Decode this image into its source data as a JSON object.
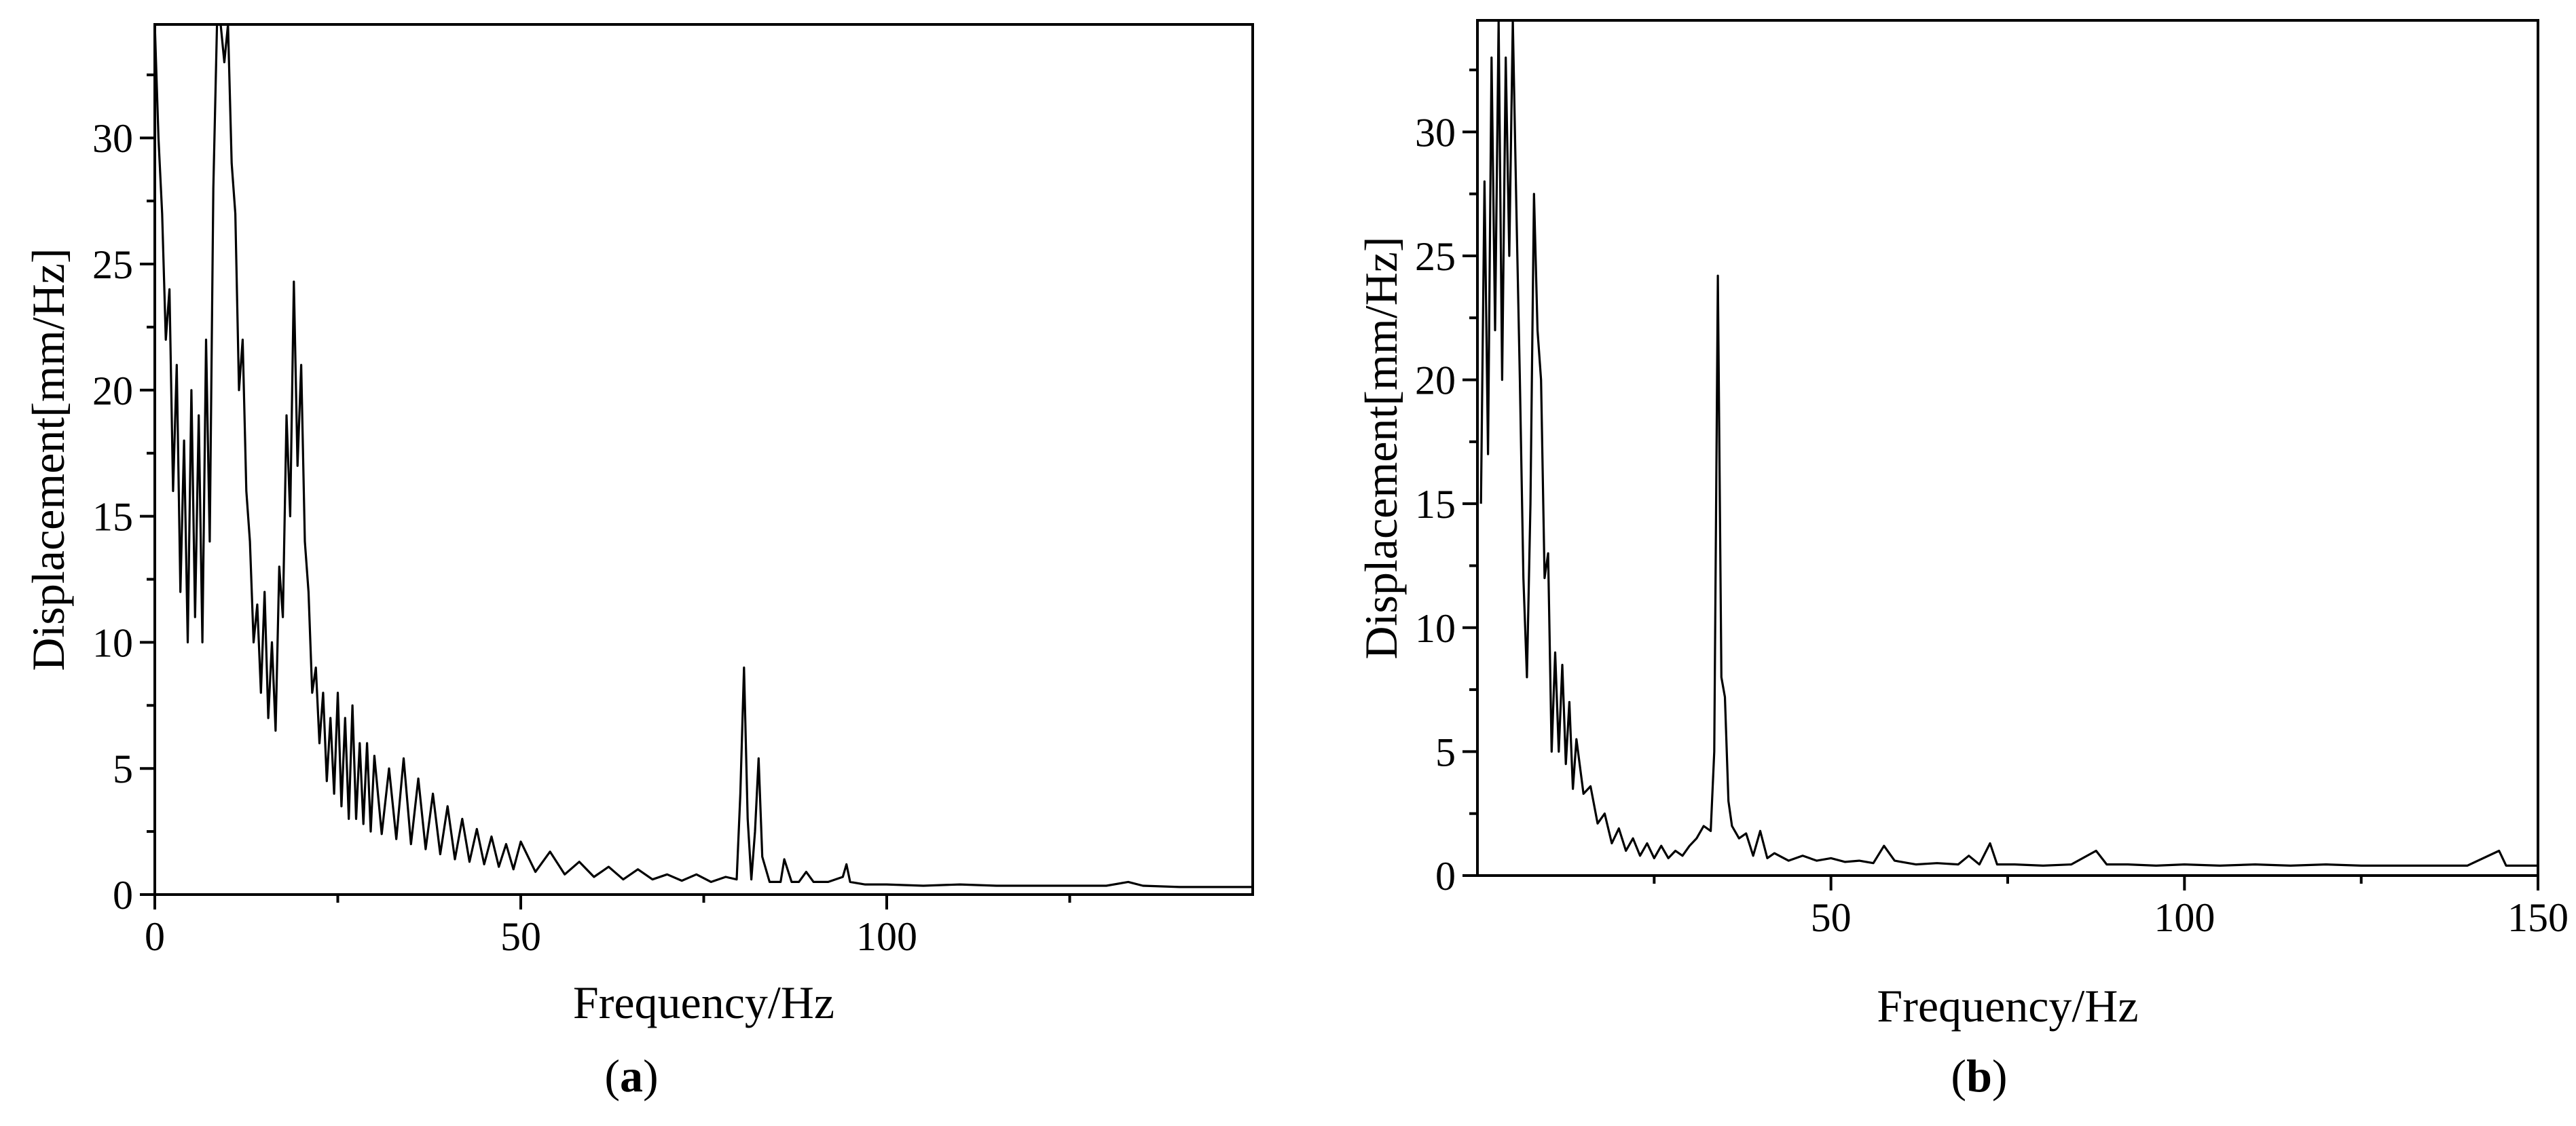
{
  "chart_data": [
    {
      "type": "line",
      "panel_label": "a",
      "xlabel": "Frequency/Hz",
      "ylabel": "Displacement[mm/Hz]",
      "xlim": [
        0,
        150
      ],
      "ylim": [
        0,
        34.5
      ],
      "x_ticks": [
        0,
        50,
        100
      ],
      "y_ticks": [
        0,
        5,
        10,
        15,
        20,
        25,
        30
      ],
      "grid": false,
      "series": [
        {
          "values": [
            [
              0,
              34.5
            ],
            [
              0.5,
              30
            ],
            [
              1,
              27
            ],
            [
              1.5,
              22
            ],
            [
              2,
              24
            ],
            [
              2.5,
              16
            ],
            [
              3,
              21
            ],
            [
              3.5,
              12
            ],
            [
              4,
              18
            ],
            [
              4.5,
              10
            ],
            [
              5,
              20
            ],
            [
              5.5,
              11
            ],
            [
              6,
              19
            ],
            [
              6.5,
              10
            ],
            [
              7,
              22
            ],
            [
              7.5,
              14
            ],
            [
              8,
              28
            ],
            [
              8.5,
              34.5
            ],
            [
              9,
              34.5
            ],
            [
              9.5,
              33
            ],
            [
              10,
              34.5
            ],
            [
              10.5,
              29
            ],
            [
              11,
              27
            ],
            [
              11.5,
              20
            ],
            [
              12,
              22
            ],
            [
              12.5,
              16
            ],
            [
              13,
              14
            ],
            [
              13.5,
              10
            ],
            [
              14,
              11.5
            ],
            [
              14.5,
              8
            ],
            [
              15,
              12
            ],
            [
              15.5,
              7
            ],
            [
              16,
              10
            ],
            [
              16.5,
              6.5
            ],
            [
              17,
              13
            ],
            [
              17.5,
              11
            ],
            [
              18,
              19
            ],
            [
              18.5,
              15
            ],
            [
              19,
              24.3
            ],
            [
              19.5,
              17
            ],
            [
              20,
              21
            ],
            [
              20.5,
              14
            ],
            [
              21,
              12
            ],
            [
              21.5,
              8
            ],
            [
              22,
              9
            ],
            [
              22.5,
              6
            ],
            [
              23,
              8
            ],
            [
              23.5,
              4.5
            ],
            [
              24,
              7
            ],
            [
              24.5,
              4
            ],
            [
              25,
              8
            ],
            [
              25.5,
              3.5
            ],
            [
              26,
              7
            ],
            [
              26.5,
              3
            ],
            [
              27,
              7.5
            ],
            [
              27.5,
              3
            ],
            [
              28,
              6
            ],
            [
              28.5,
              2.8
            ],
            [
              29,
              6
            ],
            [
              29.5,
              2.5
            ],
            [
              30,
              5.5
            ],
            [
              31,
              2.4
            ],
            [
              32,
              5
            ],
            [
              33,
              2.2
            ],
            [
              34,
              5.4
            ],
            [
              35,
              2
            ],
            [
              36,
              4.6
            ],
            [
              37,
              1.8
            ],
            [
              38,
              4
            ],
            [
              39,
              1.6
            ],
            [
              40,
              3.5
            ],
            [
              41,
              1.4
            ],
            [
              42,
              3
            ],
            [
              43,
              1.3
            ],
            [
              44,
              2.6
            ],
            [
              45,
              1.2
            ],
            [
              46,
              2.3
            ],
            [
              47,
              1.1
            ],
            [
              48,
              2
            ],
            [
              49,
              1
            ],
            [
              50,
              2.1
            ],
            [
              52,
              0.9
            ],
            [
              54,
              1.7
            ],
            [
              56,
              0.8
            ],
            [
              58,
              1.3
            ],
            [
              60,
              0.7
            ],
            [
              62,
              1.1
            ],
            [
              64,
              0.6
            ],
            [
              66,
              1
            ],
            [
              68,
              0.6
            ],
            [
              70,
              0.8
            ],
            [
              72,
              0.55
            ],
            [
              74,
              0.8
            ],
            [
              76,
              0.5
            ],
            [
              78,
              0.7
            ],
            [
              79.5,
              0.6
            ],
            [
              80,
              4
            ],
            [
              80.5,
              9
            ],
            [
              81,
              3
            ],
            [
              81.5,
              0.6
            ],
            [
              82,
              2.5
            ],
            [
              82.5,
              5.4
            ],
            [
              83,
              1.5
            ],
            [
              84,
              0.5
            ],
            [
              85.5,
              0.5
            ],
            [
              86,
              1.4
            ],
            [
              87,
              0.5
            ],
            [
              88,
              0.5
            ],
            [
              89,
              0.9
            ],
            [
              90,
              0.5
            ],
            [
              92,
              0.5
            ],
            [
              94,
              0.7
            ],
            [
              94.5,
              1.2
            ],
            [
              95,
              0.5
            ],
            [
              97,
              0.4
            ],
            [
              100,
              0.4
            ],
            [
              105,
              0.35
            ],
            [
              110,
              0.4
            ],
            [
              115,
              0.35
            ],
            [
              120,
              0.35
            ],
            [
              125,
              0.35
            ],
            [
              130,
              0.35
            ],
            [
              133,
              0.5
            ],
            [
              135,
              0.35
            ],
            [
              140,
              0.3
            ],
            [
              145,
              0.3
            ],
            [
              150,
              0.3
            ]
          ]
        }
      ]
    },
    {
      "type": "line",
      "panel_label": "b",
      "xlabel": "Frequency/Hz",
      "ylabel": "Displacement[mm/Hz]",
      "xlim": [
        0,
        150
      ],
      "ylim": [
        0,
        34.5
      ],
      "x_ticks": [
        50,
        100,
        150
      ],
      "y_ticks": [
        0,
        5,
        10,
        15,
        20,
        25,
        30
      ],
      "grid": false,
      "series": [
        {
          "values": [
            [
              0.5,
              15
            ],
            [
              1,
              28
            ],
            [
              1.5,
              17
            ],
            [
              2,
              33
            ],
            [
              2.5,
              22
            ],
            [
              3,
              34.5
            ],
            [
              3.5,
              20
            ],
            [
              4,
              33
            ],
            [
              4.5,
              25
            ],
            [
              5,
              34.5
            ],
            [
              5.5,
              27
            ],
            [
              6,
              20
            ],
            [
              6.5,
              12
            ],
            [
              7,
              8
            ],
            [
              7.5,
              15
            ],
            [
              8,
              27.5
            ],
            [
              8.5,
              22
            ],
            [
              9,
              20
            ],
            [
              9.5,
              12
            ],
            [
              10,
              13
            ],
            [
              10.5,
              5
            ],
            [
              11,
              9
            ],
            [
              11.5,
              5
            ],
            [
              12,
              8.5
            ],
            [
              12.5,
              4.5
            ],
            [
              13,
              7
            ],
            [
              13.5,
              3.5
            ],
            [
              14,
              5.5
            ],
            [
              15,
              3.3
            ],
            [
              16,
              3.6
            ],
            [
              17,
              2.1
            ],
            [
              18,
              2.5
            ],
            [
              19,
              1.3
            ],
            [
              20,
              1.9
            ],
            [
              21,
              1
            ],
            [
              22,
              1.5
            ],
            [
              23,
              0.8
            ],
            [
              24,
              1.3
            ],
            [
              25,
              0.7
            ],
            [
              26,
              1.2
            ],
            [
              27,
              0.7
            ],
            [
              28,
              1
            ],
            [
              29,
              0.8
            ],
            [
              30,
              1.2
            ],
            [
              31,
              1.5
            ],
            [
              32,
              2
            ],
            [
              33,
              1.8
            ],
            [
              33.5,
              5
            ],
            [
              34,
              24.2
            ],
            [
              34.5,
              8
            ],
            [
              35,
              7.2
            ],
            [
              35.5,
              3
            ],
            [
              36,
              2
            ],
            [
              37,
              1.5
            ],
            [
              38,
              1.7
            ],
            [
              39,
              0.8
            ],
            [
              40,
              1.8
            ],
            [
              41,
              0.7
            ],
            [
              42,
              0.9
            ],
            [
              44,
              0.6
            ],
            [
              46,
              0.8
            ],
            [
              48,
              0.6
            ],
            [
              50,
              0.7
            ],
            [
              52,
              0.55
            ],
            [
              54,
              0.6
            ],
            [
              56,
              0.5
            ],
            [
              57.5,
              1.2
            ],
            [
              59,
              0.6
            ],
            [
              62,
              0.45
            ],
            [
              65,
              0.5
            ],
            [
              68,
              0.45
            ],
            [
              69.5,
              0.8
            ],
            [
              71,
              0.45
            ],
            [
              72.5,
              1.3
            ],
            [
              73.5,
              0.45
            ],
            [
              76,
              0.45
            ],
            [
              80,
              0.4
            ],
            [
              84,
              0.45
            ],
            [
              87.5,
              1
            ],
            [
              89,
              0.45
            ],
            [
              92,
              0.45
            ],
            [
              96,
              0.4
            ],
            [
              100,
              0.45
            ],
            [
              105,
              0.4
            ],
            [
              110,
              0.45
            ],
            [
              115,
              0.4
            ],
            [
              120,
              0.45
            ],
            [
              125,
              0.4
            ],
            [
              130,
              0.4
            ],
            [
              135,
              0.4
            ],
            [
              140,
              0.4
            ],
            [
              144.5,
              1
            ],
            [
              145.5,
              0.4
            ],
            [
              148,
              0.4
            ],
            [
              150,
              0.4
            ]
          ]
        }
      ]
    }
  ]
}
